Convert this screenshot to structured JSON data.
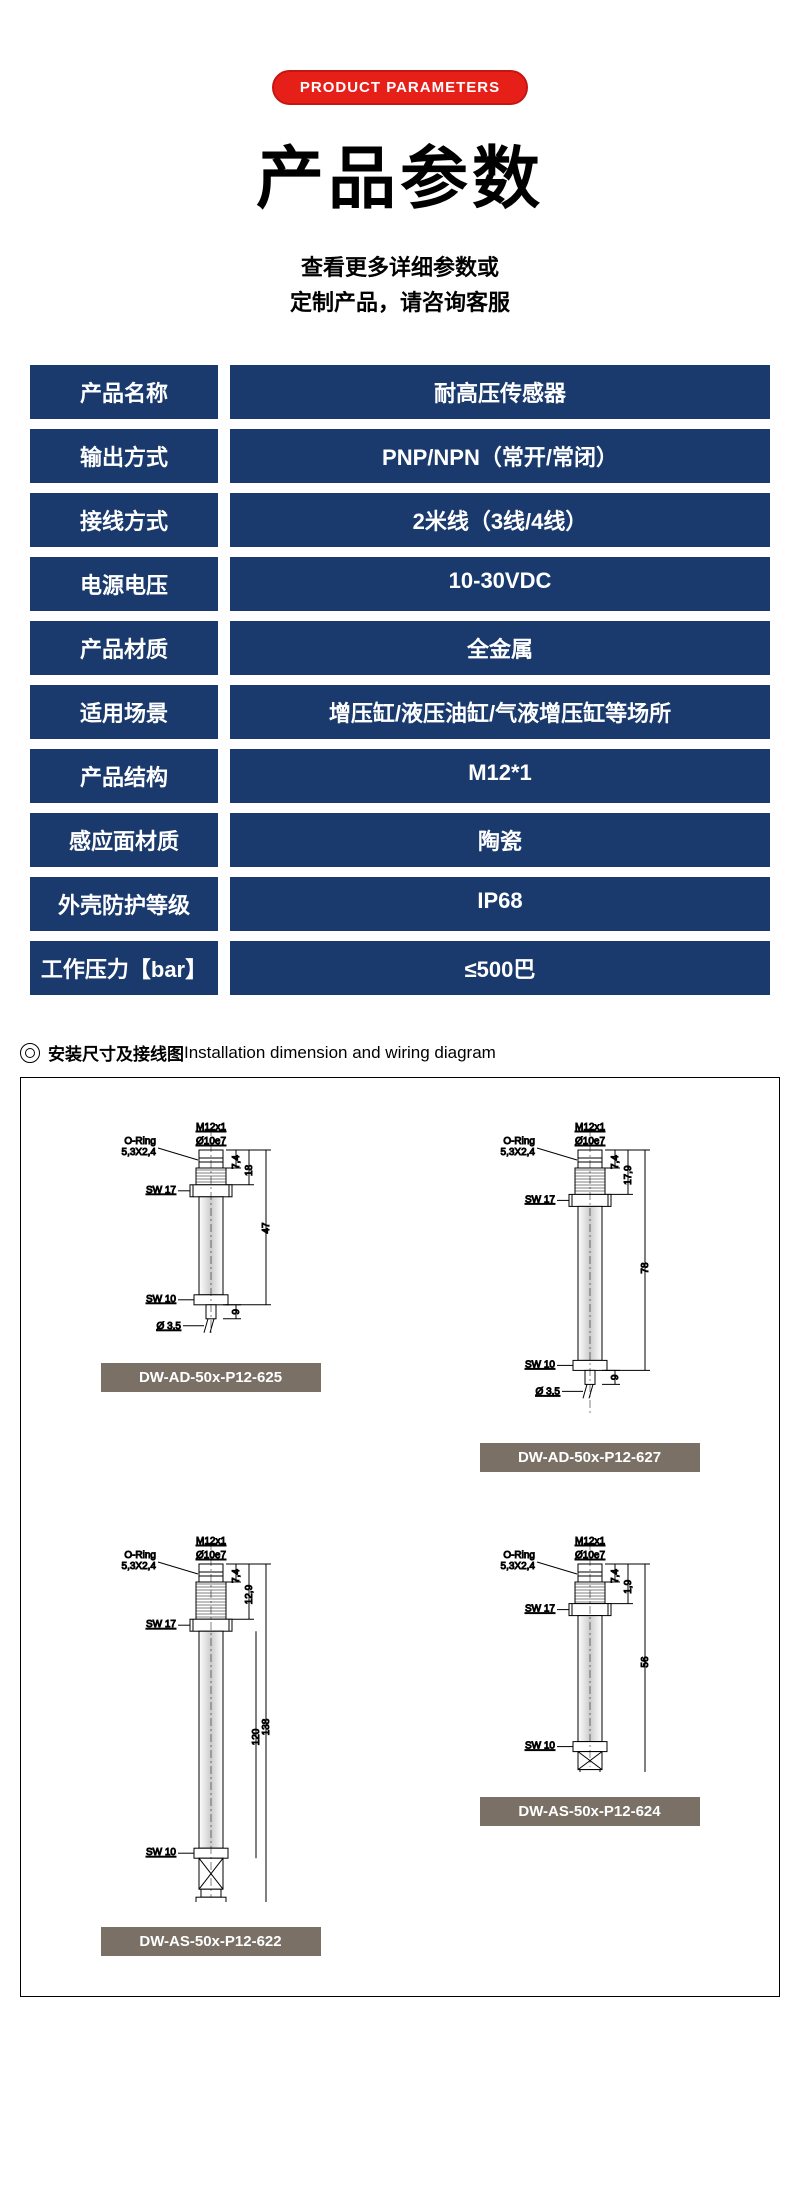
{
  "badge_text": "PRODUCT PARAMETERS",
  "main_title": "产品参数",
  "subtitle_line1": "查看更多详细参数或",
  "subtitle_line2": "定制产品，请咨询客服",
  "colors": {
    "badge_bg": "#e71f19",
    "spec_bg": "#1a3a6e",
    "model_label_bg": "#7a7066"
  },
  "specs": [
    {
      "label": "产品名称",
      "value": "耐高压传感器"
    },
    {
      "label": "输出方式",
      "value": "PNP/NPN（常开/常闭）"
    },
    {
      "label": "接线方式",
      "value": "2米线（3线/4线）"
    },
    {
      "label": "电源电压",
      "value": "10-30VDC"
    },
    {
      "label": "产品材质",
      "value": "全金属"
    },
    {
      "label": "适用场景",
      "value": "增压缸/液压油缸/气液增压缸等场所"
    },
    {
      "label": "产品结构",
      "value": "M12*1"
    },
    {
      "label": "感应面材质",
      "value": "陶瓷"
    },
    {
      "label": "外壳防护等级",
      "value": "IP68"
    },
    {
      "label": "工作压力【bar】",
      "value": "≤500巴"
    }
  ],
  "diagram_title_cn": "安装尺寸及接线图",
  "diagram_title_en": "Installation dimension and wiring diagram",
  "diagrams": [
    {
      "model": "DW-AD-50x-P12-625",
      "body_height": 140,
      "has_connector": false,
      "dims": {
        "thread": "M12x1",
        "dia": "Ø10e7",
        "oring": "O-Ring\n5,3X2,4",
        "sw1": "SW 17",
        "sw2": "SW 10",
        "tip_dia": "Ø 3,5",
        "h1": "7,4",
        "h2": "18",
        "total": "47",
        "extra": "9"
      }
    },
    {
      "model": "DW-AD-50x-P12-627",
      "body_height": 220,
      "has_connector": false,
      "dims": {
        "thread": "M12x1",
        "dia": "Ø10e7",
        "oring": "O-Ring\n5,3X2,4",
        "sw1": "SW 17",
        "sw2": "SW 10",
        "tip_dia": "Ø 3,5",
        "h1": "7,4",
        "h2": "17,9",
        "total": "78",
        "extra": "9"
      }
    },
    {
      "model": "DW-AS-50x-P12-622",
      "body_height": 310,
      "has_connector": true,
      "dims": {
        "thread": "M12x1",
        "dia": "Ø10e7",
        "oring": "O-Ring\n5,3X2,4",
        "sw1": "SW 17",
        "sw2": "SW 10",
        "thread2": "M12x1",
        "h1": "7,4",
        "h2": "12,9",
        "total": "138",
        "inner": "120"
      }
    },
    {
      "model": "DW-AS-50x-P12-624",
      "body_height": 180,
      "has_connector": true,
      "dims": {
        "thread": "M12x1",
        "dia": "Ø10e7",
        "oring": "O-Ring\n5,3X2,4",
        "sw1": "SW 17",
        "sw2": "SW 10",
        "h1": "7,4",
        "h2": "1,9",
        "total": "56"
      }
    }
  ]
}
